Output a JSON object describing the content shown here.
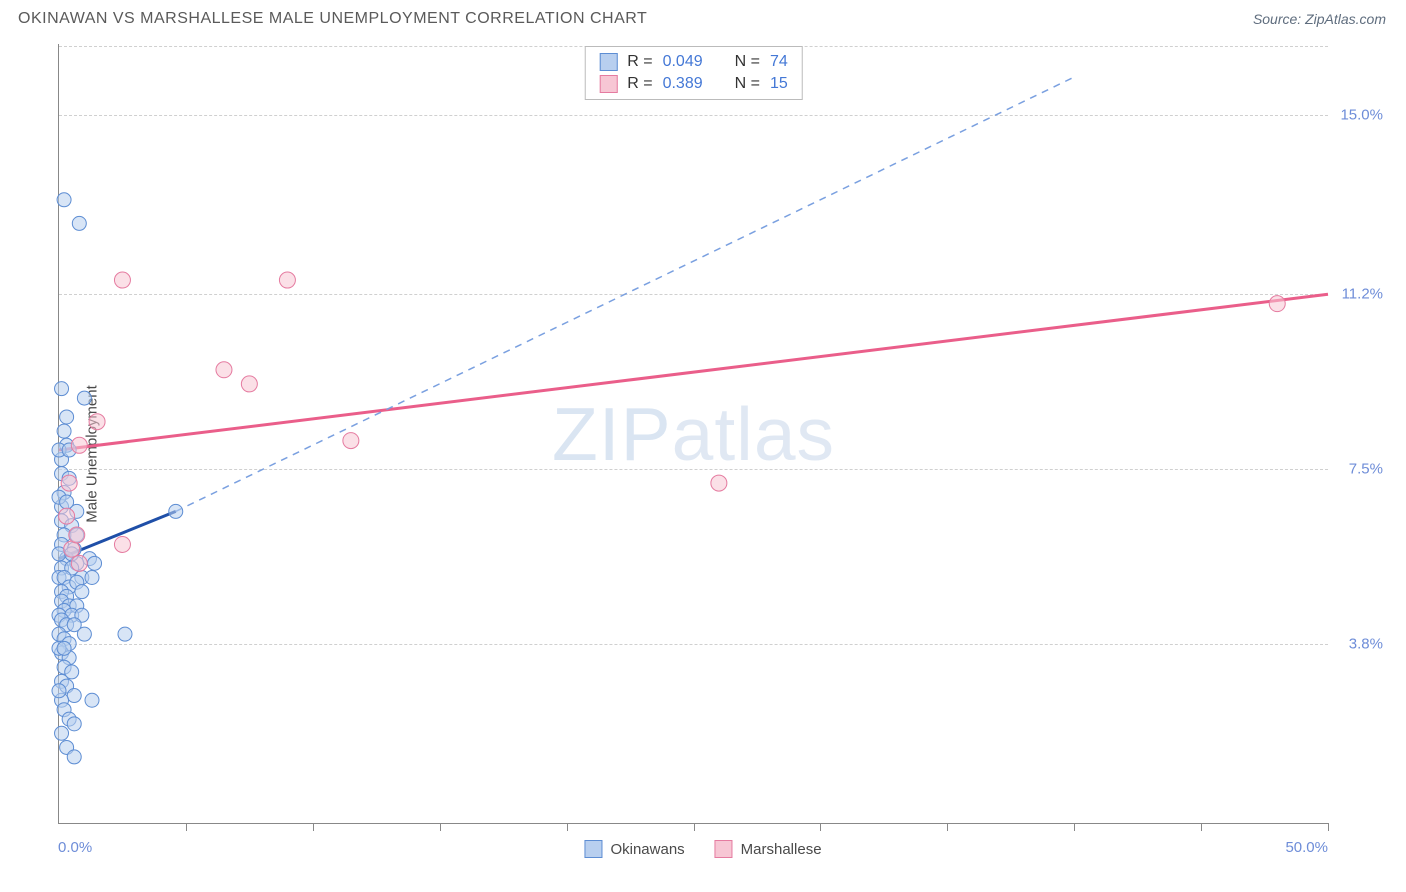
{
  "header": {
    "title": "OKINAWAN VS MARSHALLESE MALE UNEMPLOYMENT CORRELATION CHART",
    "source": "Source: ZipAtlas.com"
  },
  "watermark": "ZIPatlas",
  "chart": {
    "type": "scatter",
    "ylabel": "Male Unemployment",
    "xlim": [
      0,
      50
    ],
    "ylim": [
      0,
      16.5
    ],
    "x_ticks": [
      5,
      10,
      15,
      20,
      25,
      30,
      35,
      40,
      45,
      50
    ],
    "y_gridlines": [
      3.8,
      7.5,
      11.2,
      15.0
    ],
    "y_tick_labels": [
      "3.8%",
      "7.5%",
      "11.2%",
      "15.0%"
    ],
    "x_min_label": "0.0%",
    "x_max_label": "50.0%",
    "grid_color": "#d0d0d0",
    "axis_color": "#888888",
    "label_color": "#6e8dd8",
    "background_color": "#ffffff",
    "series": [
      {
        "name": "Okinawans",
        "fill": "#b8cfef",
        "stroke": "#5d8dd3",
        "marker_radius": 7,
        "marker_opacity": 0.55,
        "trend_solid_color": "#1f4fa8",
        "trend_dash_color": "#7aa0e0",
        "trend_start": [
          0,
          5.6
        ],
        "trend_solid_end": [
          4.6,
          6.6
        ],
        "trend_dash_end": [
          40,
          15.8
        ],
        "R": "0.049",
        "N": "74",
        "points": [
          [
            0.2,
            13.2
          ],
          [
            0.8,
            12.7
          ],
          [
            0.1,
            9.2
          ],
          [
            1.0,
            9.0
          ],
          [
            0.3,
            8.6
          ],
          [
            0.2,
            8.3
          ],
          [
            0.3,
            8.0
          ],
          [
            0.1,
            7.7
          ],
          [
            0.1,
            7.4
          ],
          [
            0.4,
            7.3
          ],
          [
            0.2,
            7.0
          ],
          [
            0.1,
            6.7
          ],
          [
            0.7,
            6.6
          ],
          [
            0.1,
            6.4
          ],
          [
            0.5,
            6.3
          ],
          [
            0.2,
            6.1
          ],
          [
            0.7,
            6.1
          ],
          [
            4.6,
            6.6
          ],
          [
            0.1,
            5.9
          ],
          [
            0.6,
            5.8
          ],
          [
            0.3,
            5.6
          ],
          [
            1.2,
            5.6
          ],
          [
            0.7,
            5.5
          ],
          [
            1.4,
            5.5
          ],
          [
            0.1,
            5.4
          ],
          [
            0.5,
            5.4
          ],
          [
            0.0,
            5.2
          ],
          [
            0.2,
            5.2
          ],
          [
            0.9,
            5.2
          ],
          [
            1.3,
            5.2
          ],
          [
            0.4,
            5.0
          ],
          [
            0.7,
            5.1
          ],
          [
            0.1,
            4.9
          ],
          [
            0.3,
            4.8
          ],
          [
            0.9,
            4.9
          ],
          [
            0.1,
            4.7
          ],
          [
            0.4,
            4.6
          ],
          [
            0.7,
            4.6
          ],
          [
            0.2,
            4.5
          ],
          [
            0.0,
            4.4
          ],
          [
            0.5,
            4.4
          ],
          [
            0.9,
            4.4
          ],
          [
            0.1,
            4.3
          ],
          [
            0.3,
            4.2
          ],
          [
            0.6,
            4.2
          ],
          [
            0.0,
            4.0
          ],
          [
            1.0,
            4.0
          ],
          [
            0.2,
            3.9
          ],
          [
            0.4,
            3.8
          ],
          [
            2.6,
            4.0
          ],
          [
            0.1,
            3.6
          ],
          [
            0.4,
            3.5
          ],
          [
            0.2,
            3.3
          ],
          [
            0.5,
            3.2
          ],
          [
            0.1,
            3.0
          ],
          [
            0.3,
            2.9
          ],
          [
            0.6,
            2.7
          ],
          [
            0.1,
            2.6
          ],
          [
            1.3,
            2.6
          ],
          [
            0.2,
            2.4
          ],
          [
            0.4,
            2.2
          ],
          [
            0.6,
            2.1
          ],
          [
            0.1,
            1.9
          ],
          [
            0.3,
            1.6
          ],
          [
            0.6,
            1.4
          ],
          [
            0.0,
            7.9
          ],
          [
            0.4,
            7.9
          ],
          [
            0.0,
            6.9
          ],
          [
            0.3,
            6.8
          ],
          [
            0.0,
            5.7
          ],
          [
            0.5,
            5.7
          ],
          [
            0.0,
            3.7
          ],
          [
            0.2,
            3.7
          ],
          [
            0.0,
            2.8
          ]
        ]
      },
      {
        "name": "Marshallese",
        "fill": "#f7c6d4",
        "stroke": "#e57ba0",
        "marker_radius": 8,
        "marker_opacity": 0.55,
        "trend_color": "#ea5e8a",
        "trend_start": [
          0,
          7.9
        ],
        "trend_end": [
          50,
          11.2
        ],
        "R": "0.389",
        "N": "15",
        "points": [
          [
            2.5,
            11.5
          ],
          [
            9.0,
            11.5
          ],
          [
            6.5,
            9.6
          ],
          [
            7.5,
            9.3
          ],
          [
            11.5,
            8.1
          ],
          [
            1.5,
            8.5
          ],
          [
            0.5,
            5.8
          ],
          [
            0.7,
            6.1
          ],
          [
            2.5,
            5.9
          ],
          [
            0.8,
            5.5
          ],
          [
            26.0,
            7.2
          ],
          [
            48.0,
            11.0
          ],
          [
            0.3,
            6.5
          ],
          [
            0.8,
            8.0
          ],
          [
            0.4,
            7.2
          ]
        ]
      }
    ],
    "bottom_legend": [
      {
        "label": "Okinawans",
        "fill": "#b8cfef",
        "stroke": "#5d8dd3"
      },
      {
        "label": "Marshallese",
        "fill": "#f7c6d4",
        "stroke": "#e57ba0"
      }
    ],
    "top_legend": {
      "rows": [
        {
          "fill": "#b8cfef",
          "stroke": "#5d8dd3",
          "R": "0.049",
          "N": "74"
        },
        {
          "fill": "#f7c6d4",
          "stroke": "#e57ba0",
          "R": "0.389",
          "N": "15"
        }
      ]
    }
  }
}
